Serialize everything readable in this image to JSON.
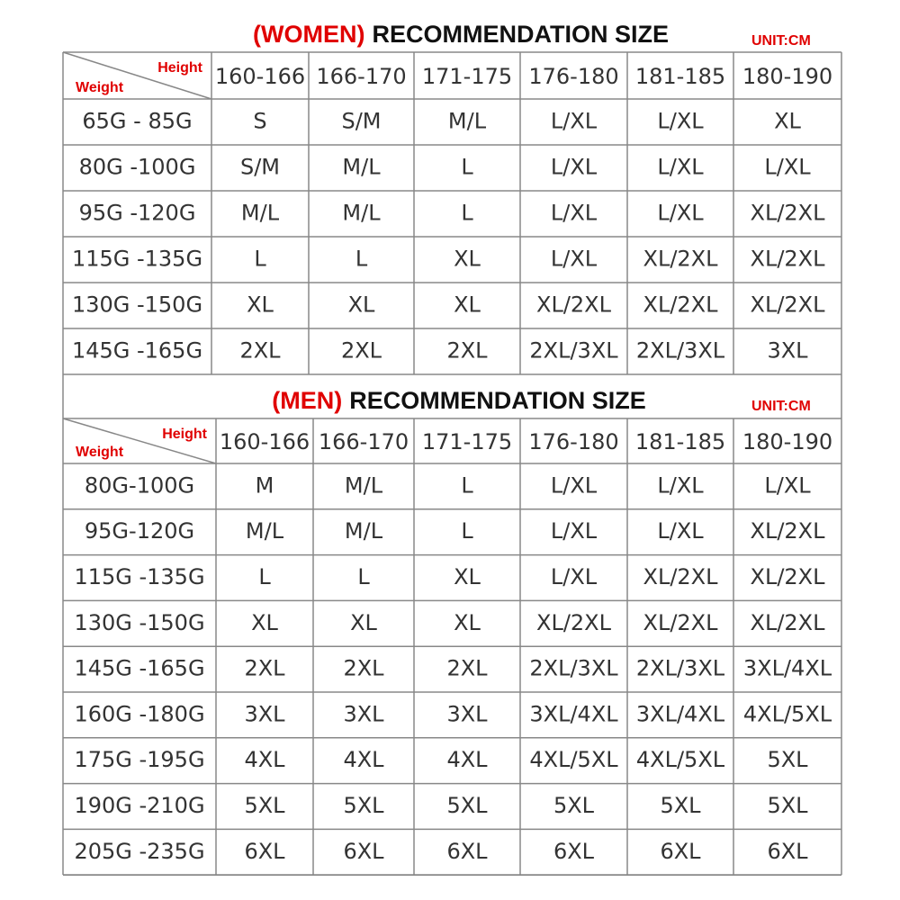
{
  "women": {
    "title_highlight": "(WOMEN)",
    "title_rest": "RECOMMENDATION SIZE",
    "unit": "UNIT:CM",
    "corner": {
      "height": "Height",
      "weight": "Weight"
    },
    "columns": [
      "160-166",
      "166-170",
      "171-175",
      "176-180",
      "181-185",
      "180-190"
    ],
    "rows": [
      {
        "label": "65G - 85G",
        "sizes": [
          "S",
          "S/M",
          "M/L",
          "L/XL",
          "L/XL",
          "XL"
        ]
      },
      {
        "label": "80G -100G",
        "sizes": [
          "S/M",
          "M/L",
          "L",
          "L/XL",
          "L/XL",
          "L/XL"
        ]
      },
      {
        "label": "95G -120G",
        "sizes": [
          "M/L",
          "M/L",
          "L",
          "L/XL",
          "L/XL",
          "XL/2XL"
        ]
      },
      {
        "label": "115G -135G",
        "sizes": [
          "L",
          "L",
          "XL",
          "L/XL",
          "XL/2XL",
          "XL/2XL"
        ]
      },
      {
        "label": "130G -150G",
        "sizes": [
          "XL",
          "XL",
          "XL",
          "XL/2XL",
          "XL/2XL",
          "XL/2XL"
        ]
      },
      {
        "label": "145G -165G",
        "sizes": [
          "2XL",
          "2XL",
          "2XL",
          "2XL/3XL",
          "2XL/3XL",
          "3XL"
        ]
      }
    ]
  },
  "men": {
    "title_highlight": "(MEN)",
    "title_rest": "RECOMMENDATION SIZE",
    "unit": "UNIT:CM",
    "corner": {
      "height": "Height",
      "weight": "Weight"
    },
    "columns": [
      "160-166",
      "166-170",
      "171-175",
      "176-180",
      "181-185",
      "180-190"
    ],
    "rows": [
      {
        "label": "80G-100G",
        "sizes": [
          "M",
          "M/L",
          "L",
          "L/XL",
          "L/XL",
          "L/XL"
        ]
      },
      {
        "label": "95G-120G",
        "sizes": [
          "M/L",
          "M/L",
          "L",
          "L/XL",
          "L/XL",
          "XL/2XL"
        ]
      },
      {
        "label": "115G -135G",
        "sizes": [
          "L",
          "L",
          "XL",
          "L/XL",
          "XL/2XL",
          "XL/2XL"
        ]
      },
      {
        "label": "130G -150G",
        "sizes": [
          "XL",
          "XL",
          "XL",
          "XL/2XL",
          "XL/2XL",
          "XL/2XL"
        ]
      },
      {
        "label": "145G -165G",
        "sizes": [
          "2XL",
          "2XL",
          "2XL",
          "2XL/3XL",
          "2XL/3XL",
          "3XL/4XL"
        ]
      },
      {
        "label": "160G -180G",
        "sizes": [
          "3XL",
          "3XL",
          "3XL",
          "3XL/4XL",
          "3XL/4XL",
          "4XL/5XL"
        ]
      },
      {
        "label": "175G -195G",
        "sizes": [
          "4XL",
          "4XL",
          "4XL",
          "4XL/5XL",
          "4XL/5XL",
          "5XL"
        ]
      },
      {
        "label": "190G -210G",
        "sizes": [
          "5XL",
          "5XL",
          "5XL",
          "5XL",
          "5XL",
          "5XL"
        ]
      },
      {
        "label": "205G -235G",
        "sizes": [
          "6XL",
          "6XL",
          "6XL",
          "6XL",
          "6XL",
          "6XL"
        ]
      }
    ]
  }
}
